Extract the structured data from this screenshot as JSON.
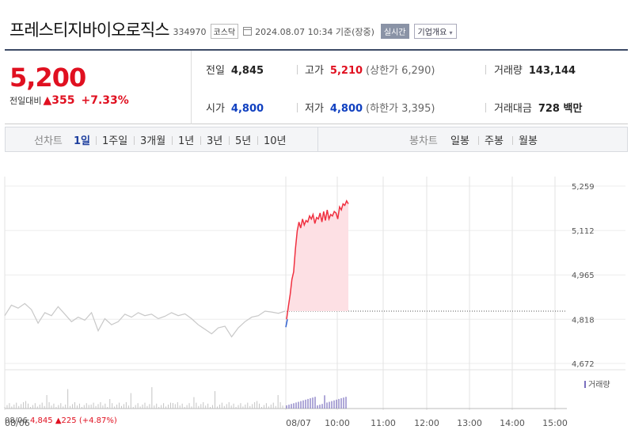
{
  "header": {
    "stock_name": "프레스티지바이오로직스",
    "stock_code": "334970",
    "market": "코스닥",
    "date_time": "2024.08.07 10:34",
    "date_suffix": "기준(장중)",
    "realtime_label": "실시간",
    "company_overview_label": "기업개요",
    "company_overview_icon": "chevron-down-icon"
  },
  "quote": {
    "current_price": "5,200",
    "change_label": "전일대비",
    "change_arrow": "▲",
    "change_value": "355",
    "change_percent": "+7.33%",
    "stats": {
      "prev_close_label": "전일",
      "prev_close": "4,845",
      "high_label": "고가",
      "high": "5,210",
      "upper_limit": "(상한가 6,290)",
      "volume_label": "거래량",
      "volume": "143,144",
      "open_label": "시가",
      "open": "4,800",
      "low_label": "저가",
      "low": "4,800",
      "lower_limit": "(하한가 3,395)",
      "trade_value_label": "거래대금",
      "trade_value": "728 백만"
    },
    "colors": {
      "up": "#e01020",
      "down": "#1040c0"
    }
  },
  "tabs": {
    "line_label": "선차트",
    "line_periods": [
      "1일",
      "1주일",
      "3개월",
      "1년",
      "3년",
      "5년",
      "10년"
    ],
    "active_period": "1일",
    "candle_label": "봉차트",
    "candle_periods": [
      "일봉",
      "주봉",
      "월봉"
    ]
  },
  "chart_data": {
    "type": "line",
    "y_ticks": [
      "5,259",
      "5,112",
      "4,965",
      "4,818",
      "4,672"
    ],
    "x_ticks": [
      "08/06",
      "08/07",
      "10:00",
      "11:00",
      "12:00",
      "13:00",
      "14:00",
      "15:00"
    ],
    "ylim": [
      4672,
      5259
    ],
    "prev_close": 4845,
    "series": [
      {
        "values_prev_day": [
          4830,
          4865,
          4855,
          4870,
          4850,
          4805,
          4840,
          4830,
          4860,
          4835,
          4810,
          4825,
          4815,
          4840,
          4780,
          4820,
          4800,
          4810,
          4835,
          4825,
          4840,
          4830,
          4835,
          4820,
          4828,
          4840,
          4830,
          4836,
          4820,
          4800,
          4785,
          4770,
          4790,
          4795,
          4760,
          4790,
          4810,
          4825,
          4830,
          4845,
          4842,
          4838,
          4845
        ]
      },
      {
        "values_today": [
          4818,
          4860,
          4900,
          4950,
          4975,
          5050,
          5110,
          5140,
          5120,
          5150,
          5130,
          5145,
          5140,
          5160,
          5150,
          5165,
          5135,
          5155,
          5150,
          5170,
          5140,
          5175,
          5145,
          5180,
          5150,
          5165,
          5160,
          5175,
          5170,
          5150,
          5190,
          5180,
          5200,
          5195,
          5210,
          5200
        ]
      }
    ],
    "volume_legend": "거래량",
    "footer": {
      "date": "08/06",
      "close": "4,845",
      "arrow": "▲",
      "change": "225",
      "pct": "(+4.87%)"
    }
  }
}
